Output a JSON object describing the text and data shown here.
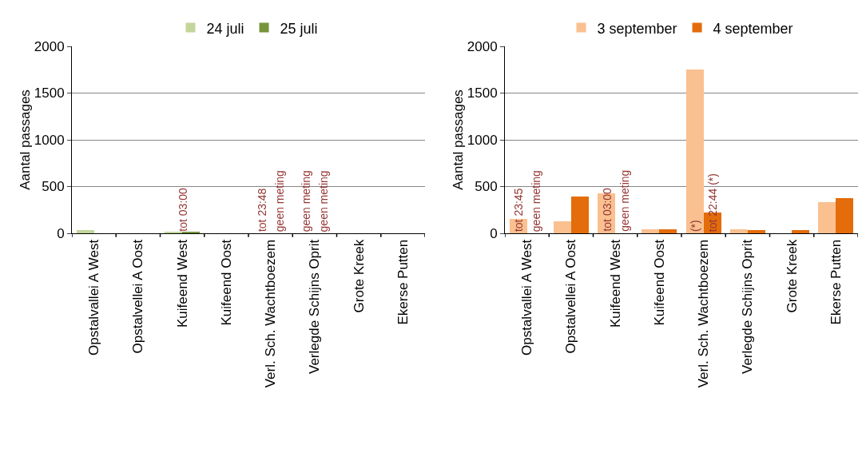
{
  "chart_data": [
    {
      "type": "bar",
      "ylabel": "Aantal passages",
      "categories": [
        "Opstalvallei A West",
        "Opstalvellei A Oost",
        "Kuifeend West",
        "Kuifeend Oost",
        "Verl. Sch. Wachtboezem",
        "Verlegde Schijns Oprit",
        "Grote Kreek",
        "Ekerse Putten"
      ],
      "series": [
        {
          "name": "24 juli",
          "color": "#c3d69b",
          "values": [
            30,
            0,
            10,
            0,
            0,
            0,
            0,
            0
          ]
        },
        {
          "name": "25 juli",
          "color": "#77933c",
          "values": [
            0,
            0,
            10,
            0,
            null,
            0,
            0,
            0
          ]
        }
      ],
      "ylim": [
        0,
        2000
      ],
      "yticks": [
        0,
        500,
        1000,
        1500,
        2000
      ],
      "grid": "y",
      "legend": "top",
      "annotations": [
        {
          "text": "tot 03:00",
          "x": "Kuifeend West",
          "y": 0
        },
        {
          "text": "tot 23:48",
          "x": "Verl. Sch. Wachtboezem",
          "y": 0
        },
        {
          "text": "geen meting",
          "x": "Verl. Sch. Wachtboezem",
          "y": 0
        },
        {
          "text": "geen meting",
          "x": "Verlegde Schijns Oprit",
          "y": 0
        },
        {
          "text": "geen meting",
          "x": "Verlegde Schijns Oprit",
          "y": 0
        }
      ]
    },
    {
      "type": "bar",
      "ylabel": "Aantal passages",
      "categories": [
        "Opstalvallei A West",
        "Opstalvellei A Oost",
        "Kuifeend West",
        "Kuifeend Oost",
        "Verl. Sch. Wachtboezem",
        "Verlegde Schijns Oprit",
        "Grote Kreek",
        "Ekerse Putten"
      ],
      "series": [
        {
          "name": "3 september",
          "color": "#fac090",
          "values": [
            150,
            130,
            430,
            40,
            1750,
            40,
            0,
            330
          ]
        },
        {
          "name": "4 september",
          "color": "#e46c0a",
          "values": [
            null,
            390,
            null,
            40,
            220,
            30,
            30,
            380
          ]
        }
      ],
      "ylim": [
        0,
        2000
      ],
      "yticks": [
        0,
        500,
        1000,
        1500,
        2000
      ],
      "grid": "y",
      "legend": "top",
      "annotations": [
        {
          "text": "tot 23:45",
          "x": "Opstalvallei A West",
          "y": 0
        },
        {
          "text": "geen meting",
          "x": "Opstalvallei A West",
          "y": 0
        },
        {
          "text": "tot 03:00",
          "x": "Kuifeend West",
          "y": 0
        },
        {
          "text": "geen meting",
          "x": "Kuifeend West",
          "y": 0
        },
        {
          "text": "(*)",
          "x": "Verl. Sch. Wachtboezem",
          "y": 0
        },
        {
          "text": "tot 22:44 (*)",
          "x": "Verl. Sch. Wachtboezem",
          "y": 0
        }
      ]
    }
  ]
}
